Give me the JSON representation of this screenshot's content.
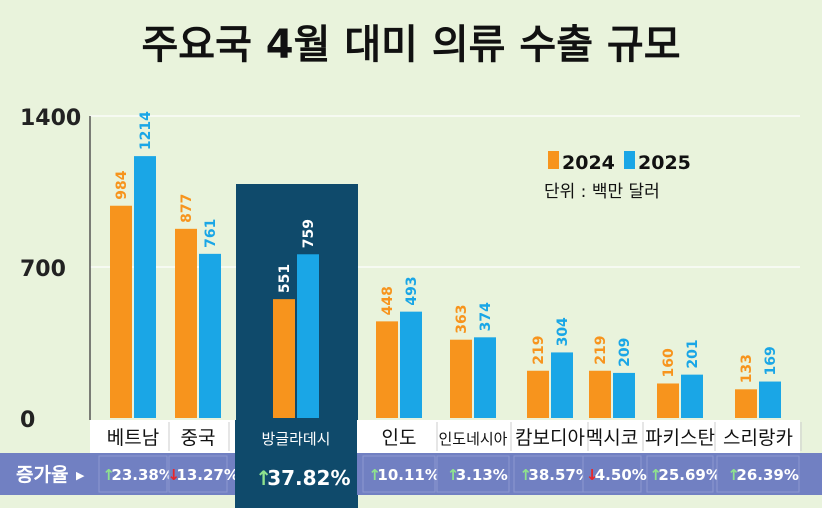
{
  "chart_data": {
    "type": "bar",
    "title": "주요국 4월 대미 의류 수출 규모",
    "unit_note": "단위 : 백만 달러",
    "categories": [
      "베트남",
      "중국",
      "방글라데시",
      "인도",
      "인도네시아",
      "캄보디아",
      "멕시코",
      "파키스탄",
      "스리랑카"
    ],
    "series": [
      {
        "name": "2024",
        "color": "#f7941d",
        "values": [
          984,
          877,
          551,
          448,
          363,
          219,
          219,
          160,
          133
        ]
      },
      {
        "name": "2025",
        "color": "#1aa6e6",
        "values": [
          1214,
          761,
          759,
          493,
          374,
          304,
          209,
          201,
          169
        ]
      }
    ],
    "growth_label": "증가율",
    "growth_rates": [
      {
        "arrow": "up",
        "text": "23.38%"
      },
      {
        "arrow": "down",
        "text": "13.27%"
      },
      {
        "arrow": "up",
        "text": "37.82%"
      },
      {
        "arrow": "up",
        "text": "10.11%"
      },
      {
        "arrow": "up",
        "text": "3.13%"
      },
      {
        "arrow": "up",
        "text": "38.57%"
      },
      {
        "arrow": "down",
        "text": "4.50%"
      },
      {
        "arrow": "up",
        "text": "25.69%"
      },
      {
        "arrow": "up",
        "text": "26.39%"
      }
    ],
    "highlight_category": "방글라데시",
    "yticks": [
      0,
      700,
      1400
    ],
    "ylim": [
      0,
      1400
    ],
    "legend_position": "top-right",
    "colors": {
      "background": "#e9f3dc",
      "highlight_panel": "#0f4a6b",
      "growth_row": "#7180c2",
      "growth_highlight": "#0f4a6b",
      "up_arrow": "#8ee28e",
      "down_arrow": "#e8262a",
      "gridline": "#ffffff"
    }
  }
}
